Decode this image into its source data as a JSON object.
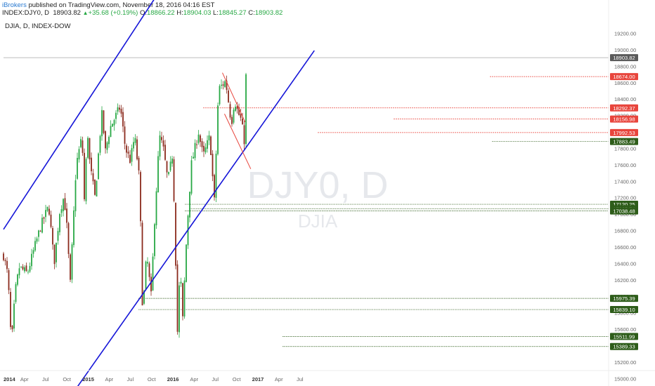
{
  "header": {
    "publisher": "iBrokers",
    "published_text": "published on TradingView.com, November 18, 2016 04:16 EST",
    "symbol": "INDEX:DJY0, D",
    "last": "18903.82",
    "change": "+35.68 (+0.19%)",
    "o_label": "O:",
    "o_value": "18866.22",
    "h_label": "H:",
    "h_value": "18904.03",
    "l_label": "L:",
    "l_value": "18845.27",
    "c_label": "C:",
    "c_value": "18903.82"
  },
  "chart_title": "DJIA, D, INDEX-DOW",
  "watermark": {
    "symbol": "DJY0, D",
    "name": "DJIA"
  },
  "colors": {
    "up": "#27a844",
    "down": "#8b2a1c",
    "channel": "#1515d8",
    "resistance": "#e8453c",
    "support": "#2e5d1a",
    "axis_text": "#666666"
  },
  "chart_data": {
    "type": "candlestick",
    "title": "DJIA, D, INDEX-DOW",
    "x": [
      "2014",
      "Apr",
      "Jul",
      "Oct",
      "2015",
      "Apr",
      "Jul",
      "Oct",
      "2016",
      "Apr",
      "Jul",
      "Oct",
      "2017",
      "Apr",
      "Jul"
    ],
    "y_ticks": [
      19200,
      19000,
      18800,
      18600,
      18400,
      18200,
      18000,
      17800,
      17600,
      17400,
      17200,
      17000,
      16800,
      16600,
      16400,
      16200,
      16000,
      15800,
      15600,
      15400,
      15200,
      15000
    ],
    "ylim": [
      14920,
      19380
    ],
    "y_tick_labels": [
      "19200.00",
      "19000.00",
      "18800.00",
      "18600.00",
      "18400.00",
      "18200.00",
      "18000.00",
      "17800.00",
      "17600.00",
      "17400.00",
      "17200.00",
      "17000.00",
      "16800.00",
      "16600.00",
      "16400.00",
      "16200.00",
      "16000.00",
      "15800.00",
      "15600.00",
      "15400.00",
      "15200.00",
      "15000.00"
    ],
    "price_series": [
      [
        "2014-01-01",
        16500
      ],
      [
        "2014-01-20",
        16250
      ],
      [
        "2014-02-04",
        15390
      ],
      [
        "2014-02-20",
        16050
      ],
      [
        "2014-03-10",
        16350
      ],
      [
        "2014-04-14",
        16280
      ],
      [
        "2014-05-10",
        16550
      ],
      [
        "2014-06-10",
        16850
      ],
      [
        "2014-07-15",
        17100
      ],
      [
        "2014-08-07",
        16400
      ],
      [
        "2014-09-01",
        17050
      ],
      [
        "2014-09-19",
        17220
      ],
      [
        "2014-10-02",
        16800
      ],
      [
        "2014-10-15",
        16120
      ],
      [
        "2014-11-10",
        17600
      ],
      [
        "2014-12-05",
        17950
      ],
      [
        "2014-12-16",
        17110
      ],
      [
        "2014-12-28",
        18060
      ],
      [
        "2015-01-08",
        17600
      ],
      [
        "2015-01-30",
        17200
      ],
      [
        "2015-02-20",
        17950
      ],
      [
        "2015-03-02",
        18240
      ],
      [
        "2015-03-15",
        17750
      ],
      [
        "2015-04-05",
        18050
      ],
      [
        "2015-05-19",
        18310
      ],
      [
        "2015-06-10",
        17800
      ],
      [
        "2015-07-01",
        17650
      ],
      [
        "2015-07-20",
        17950
      ],
      [
        "2015-08-10",
        17400
      ],
      [
        "2015-08-24",
        15700
      ],
      [
        "2015-09-01",
        16200
      ],
      [
        "2015-09-10",
        16500
      ],
      [
        "2015-09-29",
        16000
      ],
      [
        "2015-10-15",
        17000
      ],
      [
        "2015-11-04",
        17950
      ],
      [
        "2015-11-20",
        17800
      ],
      [
        "2015-12-10",
        17400
      ],
      [
        "2015-12-29",
        17720
      ],
      [
        "2016-01-08",
        17000
      ],
      [
        "2016-01-20",
        15550
      ],
      [
        "2016-02-01",
        16400
      ],
      [
        "2016-02-11",
        15660
      ],
      [
        "2016-03-01",
        16800
      ],
      [
        "2016-03-20",
        17600
      ],
      [
        "2016-04-20",
        18000
      ],
      [
        "2016-05-10",
        17700
      ],
      [
        "2016-06-08",
        17950
      ],
      [
        "2016-06-27",
        17140
      ],
      [
        "2016-07-15",
        18520
      ],
      [
        "2016-08-15",
        18620
      ],
      [
        "2016-09-09",
        18100
      ],
      [
        "2016-09-22",
        18400
      ],
      [
        "2016-10-05",
        18250
      ],
      [
        "2016-10-20",
        18150
      ],
      [
        "2016-11-04",
        17880
      ],
      [
        "2016-11-09",
        18600
      ],
      [
        "2016-11-15",
        18900
      ],
      [
        "2016-11-17",
        18903.82
      ]
    ],
    "levels": {
      "resistance": [
        18674.0,
        18292.37,
        18156.98,
        17992.53
      ],
      "support": [
        17883.49,
        17120.25,
        17065.74,
        17038.48,
        15975.39,
        15839.1,
        15511.99,
        15389.33
      ]
    },
    "level_labels": {
      "resistance": [
        "18674.00",
        "18292.37",
        "18156.98",
        "17992.53"
      ],
      "support": [
        "17883.49",
        "17120.25",
        "17065.74",
        "17038.48",
        "15975.39",
        "15839.10",
        "15511.99",
        "15389.33"
      ]
    },
    "channel": {
      "upper": [
        [
          "2014-01-01",
          16815
        ],
        [
          "2015-11-01",
          19700
        ]
      ],
      "lower": [
        [
          "2014-10-29",
          14830
        ],
        [
          "2017-09-01",
          18990
        ]
      ]
    },
    "flag": {
      "upper": [
        [
          "2016-08-01",
          18720
        ],
        [
          "2016-11-07",
          18120
        ]
      ],
      "lower": [
        [
          "2016-08-10",
          18220
        ],
        [
          "2016-12-01",
          17550
        ]
      ]
    }
  }
}
